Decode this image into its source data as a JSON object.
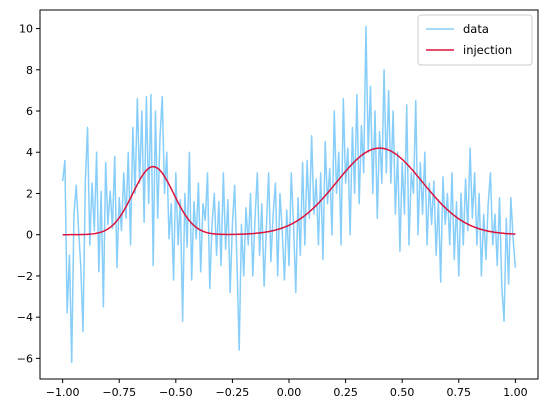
{
  "chart_data": {
    "type": "line",
    "title": "",
    "xlabel": "",
    "ylabel": "",
    "xlim": [
      -1.1,
      1.1
    ],
    "ylim": [
      -7.0,
      10.9
    ],
    "xticks": [
      -1.0,
      -0.75,
      -0.5,
      -0.25,
      0.0,
      0.25,
      0.5,
      0.75,
      1.0
    ],
    "xtick_labels": [
      "−1.00",
      "−0.75",
      "−0.50",
      "−0.25",
      "0.00",
      "0.25",
      "0.50",
      "0.75",
      "1.00"
    ],
    "yticks": [
      -6,
      -4,
      -2,
      0,
      2,
      4,
      6,
      8,
      10
    ],
    "ytick_labels": [
      "−6",
      "−4",
      "−2",
      "0",
      "2",
      "4",
      "6",
      "8",
      "10"
    ],
    "grid": false,
    "legend_position": "top-right",
    "series": [
      {
        "name": "data",
        "color": "#87cefa",
        "note_x_range": [
          -1.0,
          1.0
        ],
        "points": [
          [
            -1.0,
            2.6
          ],
          [
            -0.99,
            3.6
          ],
          [
            -0.98,
            -3.8
          ],
          [
            -0.97,
            -1.0
          ],
          [
            -0.965,
            -3.5
          ],
          [
            -0.96,
            -6.2
          ],
          [
            -0.95,
            1.0
          ],
          [
            -0.94,
            2.4
          ],
          [
            -0.93,
            0.3
          ],
          [
            -0.92,
            -1.5
          ],
          [
            -0.91,
            -4.7
          ],
          [
            -0.9,
            2.5
          ],
          [
            -0.89,
            5.2
          ],
          [
            -0.88,
            -0.5
          ],
          [
            -0.87,
            2.5
          ],
          [
            -0.86,
            0.2
          ],
          [
            -0.85,
            4.0
          ],
          [
            -0.84,
            -1.8
          ],
          [
            -0.83,
            2.1
          ],
          [
            -0.82,
            -3.5
          ],
          [
            -0.81,
            3.5
          ],
          [
            -0.8,
            0.5
          ],
          [
            -0.79,
            2.1
          ],
          [
            -0.78,
            0.3
          ],
          [
            -0.77,
            3.8
          ],
          [
            -0.76,
            -1.6
          ],
          [
            -0.75,
            1.8
          ],
          [
            -0.74,
            0.2
          ],
          [
            -0.73,
            3.0
          ],
          [
            -0.72,
            0.8
          ],
          [
            -0.71,
            4.0
          ],
          [
            -0.7,
            -0.5
          ],
          [
            -0.69,
            5.2
          ],
          [
            -0.68,
            2.0
          ],
          [
            -0.67,
            6.6
          ],
          [
            -0.66,
            2.5
          ],
          [
            -0.65,
            6.0
          ],
          [
            -0.64,
            0.6
          ],
          [
            -0.63,
            6.7
          ],
          [
            -0.62,
            1.5
          ],
          [
            -0.61,
            6.8
          ],
          [
            -0.6,
            -1.5
          ],
          [
            -0.59,
            6.0
          ],
          [
            -0.58,
            0.8
          ],
          [
            -0.57,
            4.7
          ],
          [
            -0.56,
            6.7
          ],
          [
            -0.55,
            2.0
          ],
          [
            -0.54,
            4.0
          ],
          [
            -0.53,
            -0.2
          ],
          [
            -0.52,
            1.5
          ],
          [
            -0.51,
            -2.2
          ],
          [
            -0.5,
            3.0
          ],
          [
            -0.49,
            -0.5
          ],
          [
            -0.48,
            1.7
          ],
          [
            -0.47,
            -4.2
          ],
          [
            -0.46,
            2.0
          ],
          [
            -0.45,
            -0.6
          ],
          [
            -0.44,
            4.0
          ],
          [
            -0.43,
            -2.2
          ],
          [
            -0.42,
            1.6
          ],
          [
            -0.41,
            -0.2
          ],
          [
            -0.4,
            2.5
          ],
          [
            -0.39,
            -1.8
          ],
          [
            -0.38,
            1.5
          ],
          [
            -0.37,
            0.7
          ],
          [
            -0.36,
            3.0
          ],
          [
            -0.35,
            -2.6
          ],
          [
            -0.34,
            0.5
          ],
          [
            -0.33,
            2.0
          ],
          [
            -0.32,
            -1.0
          ],
          [
            -0.31,
            1.6
          ],
          [
            -0.3,
            -1.5
          ],
          [
            -0.29,
            3.0
          ],
          [
            -0.28,
            -0.7
          ],
          [
            -0.27,
            1.7
          ],
          [
            -0.26,
            -2.8
          ],
          [
            -0.25,
            0.5
          ],
          [
            -0.24,
            2.4
          ],
          [
            -0.23,
            -1.3
          ],
          [
            -0.22,
            -5.6
          ],
          [
            -0.21,
            0.5
          ],
          [
            -0.2,
            -2.0
          ],
          [
            -0.19,
            1.3
          ],
          [
            -0.18,
            -0.5
          ],
          [
            -0.17,
            2.0
          ],
          [
            -0.16,
            -2.0
          ],
          [
            -0.15,
            0.8
          ],
          [
            -0.14,
            3.0
          ],
          [
            -0.13,
            -1.0
          ],
          [
            -0.12,
            1.5
          ],
          [
            -0.11,
            -2.5
          ],
          [
            -0.1,
            0.3
          ],
          [
            -0.09,
            3.0
          ],
          [
            -0.08,
            -1.3
          ],
          [
            -0.07,
            1.0
          ],
          [
            -0.06,
            2.5
          ],
          [
            -0.05,
            -2.0
          ],
          [
            -0.04,
            2.0
          ],
          [
            -0.03,
            0.2
          ],
          [
            -0.02,
            -2.2
          ],
          [
            -0.01,
            1.2
          ],
          [
            0.0,
            -1.5
          ],
          [
            0.01,
            3.0
          ],
          [
            0.02,
            0.5
          ],
          [
            0.03,
            -2.8
          ],
          [
            0.04,
            1.8
          ],
          [
            0.05,
            -1.0
          ],
          [
            0.06,
            3.5
          ],
          [
            0.07,
            -0.5
          ],
          [
            0.08,
            3.6
          ],
          [
            0.09,
            0.8
          ],
          [
            0.1,
            4.8
          ],
          [
            0.11,
            1.0
          ],
          [
            0.12,
            2.7
          ],
          [
            0.13,
            -0.5
          ],
          [
            0.14,
            3.0
          ],
          [
            0.15,
            -1.2
          ],
          [
            0.16,
            4.5
          ],
          [
            0.17,
            1.5
          ],
          [
            0.18,
            3.2
          ],
          [
            0.19,
            0.0
          ],
          [
            0.2,
            6.0
          ],
          [
            0.21,
            2.0
          ],
          [
            0.22,
            4.0
          ],
          [
            0.23,
            -0.5
          ],
          [
            0.24,
            6.6
          ],
          [
            0.25,
            2.5
          ],
          [
            0.26,
            4.2
          ],
          [
            0.27,
            0.0
          ],
          [
            0.28,
            5.2
          ],
          [
            0.29,
            2.0
          ],
          [
            0.3,
            6.8
          ],
          [
            0.31,
            1.5
          ],
          [
            0.32,
            5.3
          ],
          [
            0.33,
            3.0
          ],
          [
            0.34,
            10.1
          ],
          [
            0.35,
            4.0
          ],
          [
            0.36,
            7.2
          ],
          [
            0.37,
            2.0
          ],
          [
            0.38,
            6.0
          ],
          [
            0.39,
            0.8
          ],
          [
            0.4,
            5.0
          ],
          [
            0.41,
            2.5
          ],
          [
            0.42,
            8.0
          ],
          [
            0.43,
            3.0
          ],
          [
            0.44,
            7.0
          ],
          [
            0.45,
            2.5
          ],
          [
            0.46,
            6.0
          ],
          [
            0.47,
            1.0
          ],
          [
            0.48,
            4.0
          ],
          [
            0.49,
            -0.8
          ],
          [
            0.5,
            3.5
          ],
          [
            0.51,
            1.0
          ],
          [
            0.52,
            6.3
          ],
          [
            0.53,
            -0.5
          ],
          [
            0.54,
            3.0
          ],
          [
            0.55,
            2.0
          ],
          [
            0.56,
            6.5
          ],
          [
            0.57,
            0.0
          ],
          [
            0.58,
            3.5
          ],
          [
            0.59,
            1.0
          ],
          [
            0.6,
            4.0
          ],
          [
            0.61,
            -0.5
          ],
          [
            0.62,
            2.5
          ],
          [
            0.63,
            0.5
          ],
          [
            0.64,
            2.6
          ],
          [
            0.65,
            -1.0
          ],
          [
            0.66,
            1.7
          ],
          [
            0.67,
            -2.3
          ],
          [
            0.68,
            2.8
          ],
          [
            0.69,
            0.5
          ],
          [
            0.7,
            2.0
          ],
          [
            0.71,
            -0.5
          ],
          [
            0.72,
            3.0
          ],
          [
            0.73,
            -1.2
          ],
          [
            0.74,
            1.6
          ],
          [
            0.75,
            -2.0
          ],
          [
            0.76,
            2.0
          ],
          [
            0.77,
            -0.5
          ],
          [
            0.78,
            2.7
          ],
          [
            0.79,
            0.2
          ],
          [
            0.8,
            4.2
          ],
          [
            0.81,
            0.8
          ],
          [
            0.82,
            3.0
          ],
          [
            0.83,
            -0.5
          ],
          [
            0.84,
            2.0
          ],
          [
            0.85,
            -2.0
          ],
          [
            0.86,
            1.0
          ],
          [
            0.87,
            -1.2
          ],
          [
            0.88,
            1.5
          ],
          [
            0.89,
            3.0
          ],
          [
            0.9,
            -0.5
          ],
          [
            0.91,
            1.0
          ],
          [
            0.92,
            -1.5
          ],
          [
            0.93,
            1.8
          ],
          [
            0.94,
            -2.5
          ],
          [
            0.95,
            -4.2
          ],
          [
            0.96,
            0.8
          ],
          [
            0.97,
            -2.4
          ],
          [
            0.98,
            1.8
          ],
          [
            0.99,
            -0.2
          ],
          [
            1.0,
            -1.6
          ]
        ]
      },
      {
        "name": "injection",
        "color": "#dc143c",
        "model": "sum of two gaussian peaks",
        "peaks": [
          {
            "center": -0.6,
            "amplitude": 3.3,
            "width": 0.09
          },
          {
            "center": 0.4,
            "amplitude": 4.2,
            "width": 0.19
          }
        ],
        "x_range": [
          -1.0,
          1.0
        ]
      }
    ]
  }
}
